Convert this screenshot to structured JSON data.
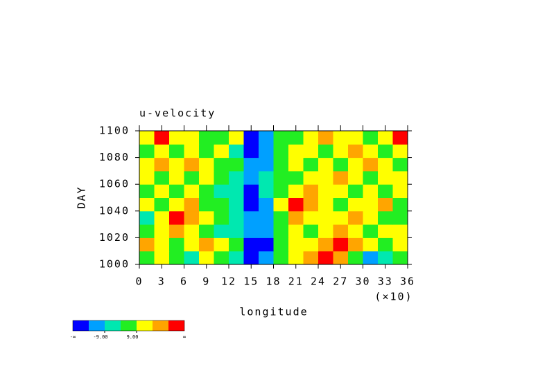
{
  "chart_data": {
    "type": "heatmap",
    "title": "u-velocity",
    "y_label": "DAY",
    "x_label": "longitude",
    "x_note": "(×10)",
    "xlim": [
      0,
      36
    ],
    "xticks": [
      0,
      3,
      6,
      9,
      12,
      15,
      18,
      21,
      24,
      27,
      30,
      33,
      36
    ],
    "ylim": [
      1000,
      1100
    ],
    "yticks": [
      1000,
      1020,
      1040,
      1060,
      1080,
      1100
    ],
    "x": [
      1,
      3,
      5,
      7,
      9,
      11,
      13,
      15,
      17,
      19,
      21,
      23,
      25,
      27,
      29,
      31,
      33,
      35
    ],
    "y": [
      1005,
      1015,
      1025,
      1035,
      1045,
      1055,
      1065,
      1075,
      1085,
      1095
    ],
    "values": [
      [
        5,
        12,
        5,
        -4,
        12,
        5,
        -4,
        -20,
        -12,
        5,
        12,
        22,
        30,
        22,
        5,
        -12,
        -4,
        5
      ],
      [
        22,
        12,
        5,
        12,
        22,
        12,
        5,
        -20,
        -20,
        5,
        12,
        12,
        22,
        30,
        22,
        12,
        5,
        12
      ],
      [
        5,
        12,
        22,
        12,
        5,
        -4,
        -4,
        -12,
        -12,
        5,
        12,
        5,
        12,
        22,
        12,
        5,
        12,
        12
      ],
      [
        -4,
        12,
        30,
        22,
        12,
        5,
        -4,
        -12,
        -12,
        5,
        22,
        12,
        12,
        12,
        22,
        12,
        5,
        5
      ],
      [
        12,
        5,
        12,
        22,
        5,
        5,
        -4,
        -20,
        -12,
        12,
        30,
        22,
        12,
        5,
        12,
        12,
        22,
        5
      ],
      [
        5,
        12,
        5,
        12,
        5,
        -4,
        -4,
        -20,
        -4,
        5,
        12,
        22,
        12,
        12,
        5,
        12,
        5,
        12
      ],
      [
        12,
        5,
        12,
        5,
        12,
        5,
        -4,
        -12,
        -4,
        5,
        5,
        12,
        12,
        22,
        12,
        5,
        12,
        12
      ],
      [
        12,
        22,
        12,
        22,
        12,
        5,
        5,
        -12,
        -12,
        5,
        12,
        5,
        12,
        5,
        12,
        22,
        12,
        5
      ],
      [
        5,
        12,
        5,
        12,
        5,
        12,
        -4,
        -20,
        -12,
        5,
        12,
        12,
        5,
        12,
        22,
        12,
        5,
        12
      ],
      [
        12,
        30,
        12,
        12,
        5,
        5,
        12,
        -20,
        -12,
        5,
        5,
        12,
        22,
        12,
        12,
        5,
        12,
        30
      ]
    ],
    "colorbar": {
      "colors": [
        "#0000ff",
        "#00a0ff",
        "#00e8b0",
        "#22ee22",
        "#ffff00",
        "#ffa500",
        "#ff0000"
      ],
      "levels": [
        -18,
        -9,
        0,
        9,
        18,
        27
      ],
      "ticks": [
        {
          "value": -9,
          "label": "-9.00"
        },
        {
          "value": 9,
          "label": "9.00"
        }
      ],
      "end_labels": [
        "-∞",
        "∞"
      ]
    }
  }
}
